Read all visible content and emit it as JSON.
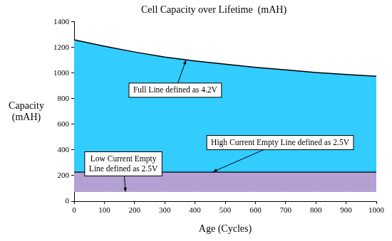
{
  "chart_data": {
    "type": "area",
    "title": "Cell Capacity over Lifetime  (mAH)",
    "x_label": "Age (Cycles)",
    "y_label": "Capacity (mAH)",
    "x": [
      0,
      100,
      200,
      300,
      400,
      500,
      600,
      700,
      800,
      900,
      1000
    ],
    "series": [
      {
        "color": "#33ccff",
        "values": [
          1260,
          1210,
          1165,
          1125,
          1095,
          1070,
          1045,
          1025,
          1005,
          990,
          975
        ]
      },
      {
        "color": "#b4a0d2",
        "values": [
          230,
          230,
          230,
          230,
          230,
          230,
          230,
          230,
          230,
          230,
          230
        ]
      },
      {
        "color": "#b4a0d2",
        "values": [
          75,
          75,
          75,
          75,
          75,
          75,
          75,
          75,
          75,
          75,
          75
        ]
      }
    ],
    "xlim": [
      0,
      1000
    ],
    "xticks": [
      0,
      100,
      200,
      300,
      400,
      500,
      600,
      700,
      800,
      900,
      1000
    ],
    "ylim": [
      0,
      1400
    ],
    "yticks": [
      0,
      200,
      400,
      600,
      800,
      1000,
      1200,
      1400
    ],
    "grid": false,
    "annotations": [
      {
        "text": "Full Line defined as 4.2V",
        "x": 370,
        "y": 1100
      },
      {
        "text": "High Current Empty Line defined as 2.5V",
        "x": 460,
        "y": 230
      },
      {
        "text": "Low Current Empty Line defined as 2.5V",
        "x": 170,
        "y": 75
      }
    ]
  }
}
